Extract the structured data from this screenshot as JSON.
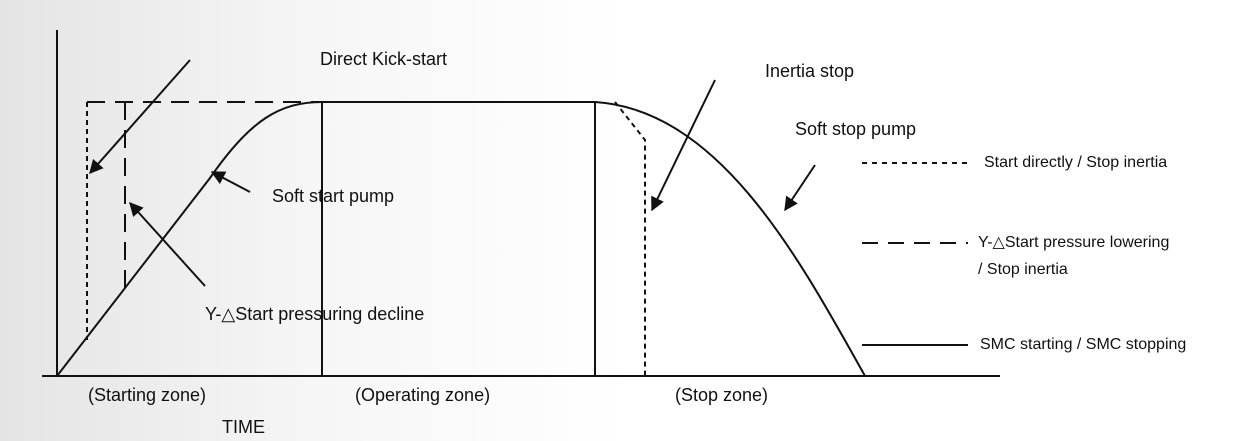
{
  "diagram": {
    "annotations": [
      "Direct Kick-start",
      "Inertia stop",
      "Soft stop pump",
      "Soft start pump",
      "Y-△Start pressuring decline"
    ],
    "legend": [
      {
        "lines": [
          "Start directly / Stop inertia"
        ]
      },
      {
        "lines": [
          "Y-△Start pressure lowering",
          "/ Stop inertia"
        ]
      },
      {
        "lines": [
          "SMC starting / SMC stopping"
        ]
      }
    ],
    "zones": [
      "(Starting zone)",
      "(Operating zone)",
      "(Stop zone)"
    ],
    "x_axis_label": "TIME"
  }
}
